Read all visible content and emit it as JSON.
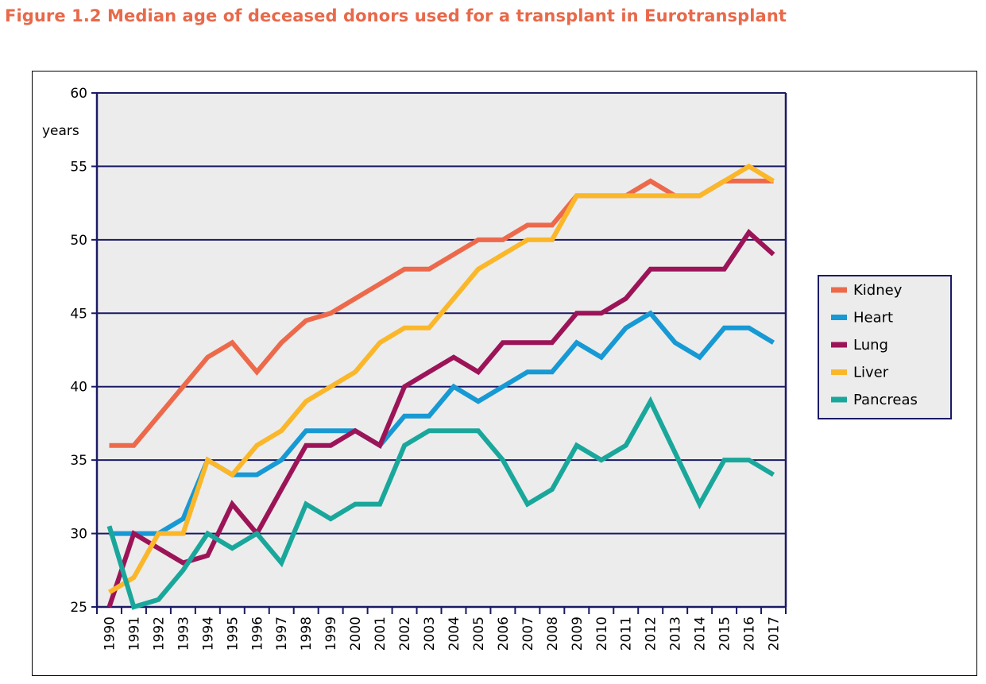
{
  "figure": {
    "title": "Figure 1.2  Median age of deceased donors used for a transplant in Eurotransplant"
  },
  "colors": {
    "title": "#e8694a",
    "plot_bg": "#ececec",
    "axis": "#1a1a66",
    "gridline": "#1a1a66"
  },
  "chart_data": {
    "type": "line",
    "title": "Figure 1.2  Median age of deceased donors used for a transplant in Eurotransplant",
    "xlabel": "",
    "ylabel": "years",
    "ylim": [
      25,
      60
    ],
    "yticks": [
      25,
      30,
      35,
      40,
      45,
      50,
      55,
      60
    ],
    "grid": "horizontal",
    "legend_position": "right",
    "categories": [
      "1990",
      "1991",
      "1992",
      "1993",
      "1994",
      "1995",
      "1996",
      "1997",
      "1998",
      "1999",
      "2000",
      "2001",
      "2002",
      "2003",
      "2004",
      "2005",
      "2006",
      "2007",
      "2008",
      "2009",
      "2010",
      "2011",
      "2012",
      "2013",
      "2014",
      "2015",
      "2016",
      "2017"
    ],
    "series": [
      {
        "name": "Kidney",
        "color": "#ec6a4b",
        "values": [
          36,
          36,
          38,
          40,
          42,
          43,
          41,
          43,
          44.5,
          45,
          46,
          47,
          48,
          48,
          49,
          50,
          50,
          51,
          51,
          53,
          53,
          53,
          54,
          53,
          53,
          54,
          54,
          54
        ]
      },
      {
        "name": "Heart",
        "color": "#1799d4",
        "values": [
          30,
          30,
          30,
          31,
          35,
          34,
          34,
          35,
          37,
          37,
          37,
          36,
          38,
          38,
          40,
          39,
          40,
          41,
          41,
          43,
          42,
          44,
          45,
          43,
          42,
          44,
          44,
          43
        ]
      },
      {
        "name": "Lung",
        "color": "#9c1458",
        "values": [
          25,
          30,
          29,
          28,
          28.5,
          32,
          30,
          33,
          36,
          36,
          37,
          36,
          40,
          41,
          42,
          41,
          43,
          43,
          43,
          45,
          45,
          46,
          48,
          48,
          48,
          48,
          50.5,
          49
        ]
      },
      {
        "name": "Liver",
        "color": "#fbb72a",
        "values": [
          26,
          27,
          30,
          30,
          35,
          34,
          36,
          37,
          39,
          40,
          41,
          43,
          44,
          44,
          46,
          48,
          49,
          50,
          50,
          53,
          53,
          53,
          53,
          53,
          53,
          54,
          55,
          54
        ]
      },
      {
        "name": "Pancreas",
        "color": "#1aa79b",
        "values": [
          30.5,
          25,
          25.5,
          27.5,
          30,
          29,
          30,
          28,
          32,
          31,
          32,
          32,
          36,
          37,
          37,
          37,
          35,
          32,
          33,
          36,
          35,
          36,
          39,
          35.5,
          32,
          35,
          35,
          34
        ]
      }
    ]
  }
}
